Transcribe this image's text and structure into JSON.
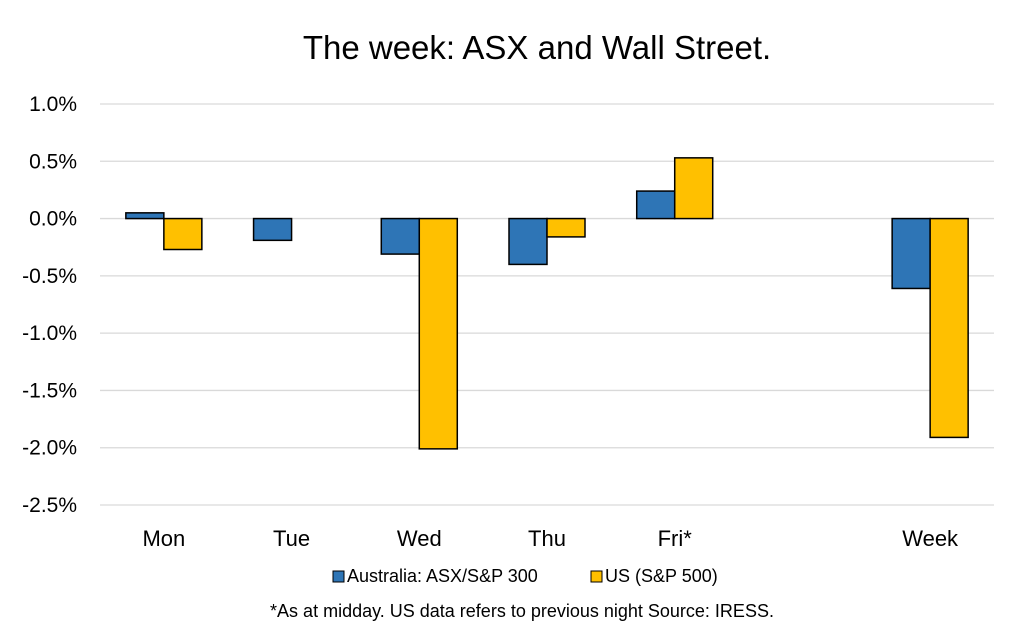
{
  "chart_data": {
    "type": "bar",
    "title": "The week:  ASX and Wall Street.",
    "categories": [
      "Mon",
      "Tue",
      "Wed",
      "Thu",
      "Fri*",
      "",
      "Week"
    ],
    "series": [
      {
        "name": "Australia: ASX/S&P 300",
        "color": "#2E75B6",
        "values": [
          0.05,
          -0.19,
          -0.31,
          -0.4,
          0.24,
          null,
          -0.61
        ]
      },
      {
        "name": "US (S&P 500)",
        "color": "#FFC000",
        "values": [
          -0.27,
          null,
          -2.01,
          -0.16,
          0.53,
          null,
          -1.91
        ]
      }
    ],
    "yticks": [
      "1.0%",
      "0.5%",
      "0.0%",
      "-0.5%",
      "-1.0%",
      "-1.5%",
      "-2.0%",
      "-2.5%"
    ],
    "ylim": [
      -2.5,
      1.0
    ],
    "grid": true,
    "legend_position": "bottom",
    "footnote": "*As at midday. US data refers to previous night  Source:  IRESS.",
    "colors": {
      "gridline": "#D9D9D9",
      "text": "#000000",
      "bar_outline": "#000000"
    }
  }
}
